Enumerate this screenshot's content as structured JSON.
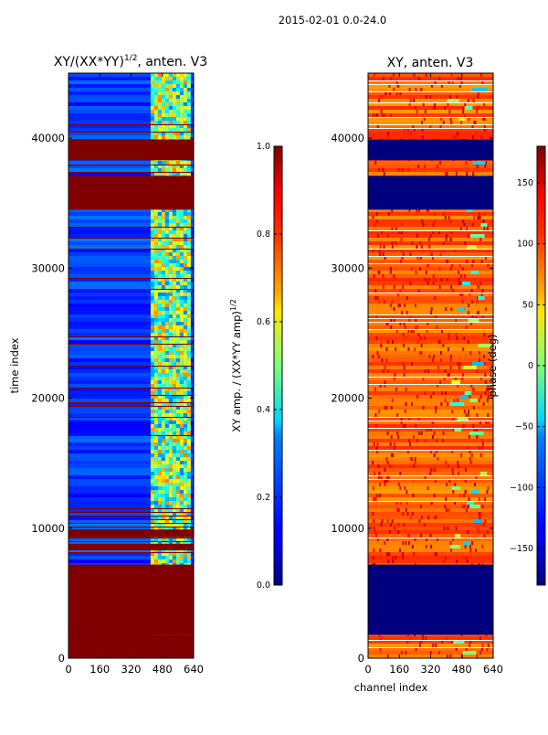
{
  "suptitle": "2015-02-01 0.0-24.0",
  "chart_data": [
    {
      "type": "heatmap",
      "title_main": "XY/(XX*YY)",
      "title_exp": "1/2",
      "title_rest": ", anten. V3",
      "xlabel": "",
      "ylabel": "time index",
      "xlim": [
        0,
        640
      ],
      "ylim": [
        0,
        45000
      ],
      "xticks": [
        0,
        160,
        320,
        480,
        640
      ],
      "yticks": [
        0,
        10000,
        20000,
        30000,
        40000
      ],
      "colormap": "jet",
      "colorbar": {
        "vmin": 0.0,
        "vmax": 1.0,
        "ticks": [
          "0.0",
          "0.2",
          "0.4",
          "0.6",
          "0.8",
          "1.0"
        ],
        "tick_values": [
          0.0,
          0.2,
          0.4,
          0.6,
          0.8,
          1.0
        ],
        "label_main": "XY amp. / (XX*YY amp)",
        "label_exp": "1/2"
      },
      "flagged_bands": [
        [
          0,
          1800,
          1.0
        ],
        [
          1800,
          7200,
          1.0
        ],
        [
          8300,
          8800,
          1.0
        ],
        [
          9300,
          9900,
          1.0
        ],
        [
          34500,
          37100,
          1.0
        ],
        [
          38300,
          39900,
          1.0
        ]
      ],
      "background_value": 0.18,
      "hot_region_x": [
        420,
        640
      ],
      "hot_region_value": 0.55
    },
    {
      "type": "heatmap",
      "title_main": "XY, anten. V3",
      "xlabel": "channel index",
      "ylabel": "",
      "xlim": [
        0,
        640
      ],
      "ylim": [
        0,
        45000
      ],
      "xticks": [
        0,
        160,
        320,
        480,
        640
      ],
      "yticks": [
        0,
        10000,
        20000,
        30000,
        40000
      ],
      "colormap": "jet",
      "colorbar": {
        "vmin": -180,
        "vmax": 180,
        "ticks": [
          "−150",
          "−100",
          "−50",
          "0",
          "50",
          "100",
          "150"
        ],
        "tick_values": [
          -150,
          -100,
          -50,
          0,
          50,
          100,
          150
        ],
        "label_main": "phase (deg)"
      },
      "flagged_bands": [
        [
          1800,
          7200,
          -180
        ],
        [
          34500,
          37100,
          -180
        ],
        [
          38300,
          39900,
          -180
        ]
      ],
      "background_value": 130
    }
  ],
  "colors": {
    "flag_high": "#800000",
    "flag_low": "#00007f"
  }
}
